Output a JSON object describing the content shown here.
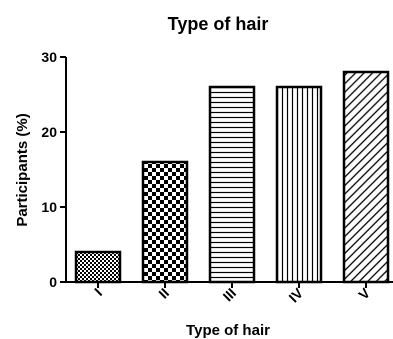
{
  "chart_data": {
    "type": "bar",
    "title": "Type of hair",
    "xlabel": "Type of hair",
    "ylabel": "Participants (%)",
    "categories": [
      "I",
      "II",
      "III",
      "IV",
      "V"
    ],
    "values": [
      4,
      16,
      26,
      26,
      28
    ],
    "ylim": [
      0,
      30
    ],
    "yticks": [
      0,
      10,
      20,
      30
    ],
    "grid": false,
    "bar_patterns": [
      "fine-checker",
      "coarse-checker",
      "horizontal-lines",
      "vertical-lines",
      "diagonal-hatch"
    ]
  }
}
